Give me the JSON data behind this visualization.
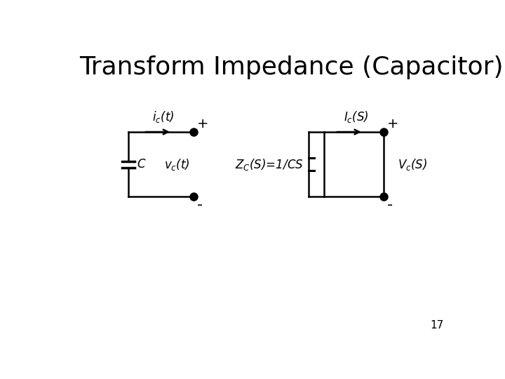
{
  "title": "Transform Impedance (Capacitor)",
  "title_fontsize": 26,
  "title_fontweight": "normal",
  "bg_color": "#ffffff",
  "line_color": "#000000",
  "page_number": "17",
  "left_circuit": {
    "label_current": "$i_c$(t)",
    "label_voltage": "$v_c$(t)",
    "label_component": "C",
    "label_plus": "+",
    "label_minus": "-"
  },
  "right_circuit": {
    "label_current": "$I_c$(S)",
    "label_impedance": "$Z_C$(S)=1/CS",
    "label_voltage": "$V_c$(S)",
    "label_plus": "+",
    "label_minus": "-"
  }
}
